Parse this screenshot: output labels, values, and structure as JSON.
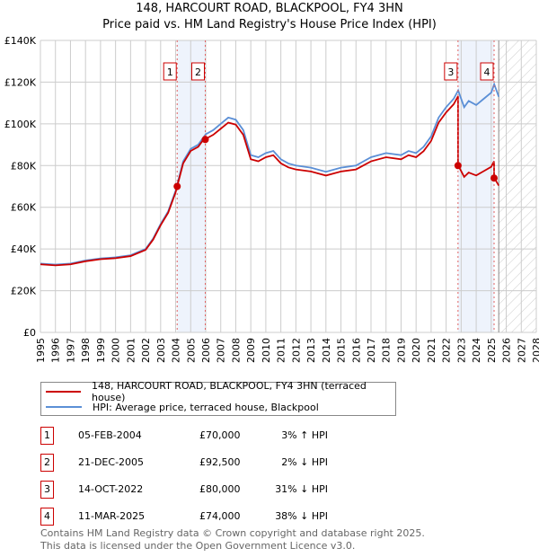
{
  "chart_data": {
    "type": "line",
    "title": "148, HARCOURT ROAD, BLACKPOOL, FY4 3HN",
    "subtitle": "Price paid vs. HM Land Registry's House Price Index (HPI)",
    "xlim": [
      1995,
      2028
    ],
    "ylim": [
      0,
      140000
    ],
    "x_ticks": [
      "1995",
      "1996",
      "1997",
      "1998",
      "1999",
      "2000",
      "2001",
      "2002",
      "2003",
      "2004",
      "2005",
      "2006",
      "2007",
      "2008",
      "2009",
      "2010",
      "2011",
      "2012",
      "2013",
      "2014",
      "2015",
      "2016",
      "2017",
      "2018",
      "2019",
      "2020",
      "2021",
      "2022",
      "2023",
      "2024",
      "2025",
      "2026",
      "2027",
      "2028"
    ],
    "y_ticks": [
      {
        "v": 0,
        "label": "£0"
      },
      {
        "v": 20000,
        "label": "£20K"
      },
      {
        "v": 40000,
        "label": "£40K"
      },
      {
        "v": 60000,
        "label": "£60K"
      },
      {
        "v": 80000,
        "label": "£80K"
      },
      {
        "v": 100000,
        "label": "£100K"
      },
      {
        "v": 120000,
        "label": "£120K"
      },
      {
        "v": 140000,
        "label": "£140K"
      }
    ],
    "grid": true,
    "forecast_from": 2025.5,
    "series": [
      {
        "name": "148, HARCOURT ROAD, BLACKPOOL, FY4 3HN (terraced house)",
        "color": "#cc0000",
        "derived_from_sales": true
      },
      {
        "name": "HPI: Average price, terraced house, Blackpool",
        "color": "#5b8fd6",
        "x": [
          1995,
          1996,
          1997,
          1998,
          1999,
          2000,
          2001,
          2002,
          2002.5,
          2003,
          2003.5,
          2004,
          2004.5,
          2005,
          2005.5,
          2006,
          2006.5,
          2007,
          2007.5,
          2008,
          2008.5,
          2009,
          2009.5,
          2010,
          2010.5,
          2011,
          2011.5,
          2012,
          2013,
          2014,
          2015,
          2016,
          2017,
          2018,
          2019,
          2019.5,
          2020,
          2020.5,
          2021,
          2021.5,
          2022,
          2022.5,
          2022.8,
          2023.2,
          2023.5,
          2024,
          2024.5,
          2025,
          2025.2,
          2025.5
        ],
        "y": [
          33000,
          32500,
          33000,
          34500,
          35500,
          36000,
          37000,
          40000,
          45000,
          52000,
          58000,
          68000,
          82000,
          88000,
          90000,
          95000,
          97000,
          100000,
          103000,
          102000,
          97000,
          85000,
          84000,
          86000,
          87000,
          83000,
          81000,
          80000,
          79000,
          77000,
          79000,
          80000,
          84000,
          86000,
          85000,
          87000,
          86000,
          89000,
          94000,
          103000,
          108000,
          112000,
          116000,
          108000,
          111000,
          109000,
          112000,
          115000,
          119000,
          113000
        ]
      }
    ],
    "sales": [
      {
        "n": "1",
        "x": 2004.1,
        "date": "05-FEB-2004",
        "value": 70000,
        "price": "£70,000",
        "hpi": "3% ↑ HPI"
      },
      {
        "n": "2",
        "x": 2005.97,
        "date": "21-DEC-2005",
        "value": 92500,
        "price": "£92,500",
        "hpi": "2% ↓ HPI"
      },
      {
        "n": "3",
        "x": 2022.79,
        "date": "14-OCT-2022",
        "value": 80000,
        "price": "£80,000",
        "hpi": "31% ↓ HPI"
      },
      {
        "n": "4",
        "x": 2025.19,
        "date": "11-MAR-2025",
        "value": 74000,
        "price": "£74,000",
        "hpi": "38% ↓ HPI"
      }
    ]
  },
  "legend": {
    "red": "148, HARCOURT ROAD, BLACKPOOL, FY4 3HN (terraced house)",
    "blue": "HPI: Average price, terraced house, Blackpool"
  },
  "footer": {
    "line1": "Contains HM Land Registry data © Crown copyright and database right 2025.",
    "line2": "This data is licensed under the Open Government Licence v3.0."
  }
}
